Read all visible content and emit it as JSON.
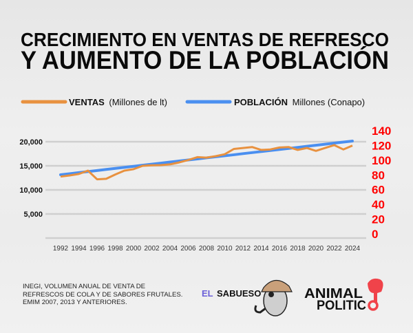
{
  "title": {
    "line1": "CRECIMIENTO EN VENTAS DE REFRESCO",
    "line2": "Y AUMENTO DE LA POBLACIÓN"
  },
  "legend": {
    "ventas_bold": "VENTAS",
    "ventas_rest": "(Millones de lt)",
    "poblacion_bold": "POBLACIÓN",
    "poblacion_rest": "Millones (Conapo)"
  },
  "source": "INEGI, VOLUMEN ANUAL DE VENTA DE REFRESCOS DE COLA Y DE SABORES FRUTALES. EMIM 2007, 2013 Y ANTERIORES.",
  "logos": {
    "sabueso_el": "EL",
    "sabueso": "SABUESO",
    "animal": "ANIMAL",
    "politico": "POLITIC"
  },
  "colors": {
    "ventas": "#e8913f",
    "poblacion": "#4a8ff0",
    "right_axis": "#ff0000",
    "grid": "#cfcfcf"
  },
  "chart_data": {
    "type": "line",
    "grid": true,
    "legend_placement": "top",
    "x": [
      1992,
      1993,
      1994,
      1995,
      1996,
      1997,
      1998,
      1999,
      2000,
      2001,
      2002,
      2003,
      2004,
      2005,
      2006,
      2007,
      2008,
      2009,
      2010,
      2011,
      2012,
      2013,
      2014,
      2015,
      2016,
      2017,
      2018,
      2019,
      2020,
      2021,
      2022,
      2023,
      2024
    ],
    "x_tick_labels": [
      "1992",
      "1994",
      "1996",
      "1998",
      "2000",
      "2002",
      "2004",
      "2006",
      "2008",
      "2010",
      "2012",
      "2014",
      "2016",
      "2018",
      "2020",
      "2022",
      "2024"
    ],
    "left_axis": {
      "ylim": [
        0,
        20000
      ],
      "tick_labels": [
        "20,000",
        "15,000",
        "10,000",
        "5,000"
      ]
    },
    "right_axis": {
      "ylim": [
        0,
        140
      ],
      "tick_labels": [
        "140",
        "120",
        "100",
        "80",
        "60",
        "40",
        "20",
        "0"
      ]
    },
    "series": [
      {
        "name": "VENTAS (Millones de lt)",
        "axis": "left",
        "values": [
          12760,
          13000,
          13300,
          14000,
          12200,
          12300,
          13200,
          14000,
          14300,
          15000,
          15100,
          15150,
          15300,
          15700,
          16200,
          16800,
          16700,
          17000,
          17400,
          18500,
          18700,
          18900,
          18300,
          18400,
          18800,
          18900,
          18300,
          18700,
          18100,
          18700,
          19300,
          18400,
          19200
        ]
      },
      {
        "name": "POBLACIÓN Millones (Conapo)",
        "axis": "right",
        "values": [
          80.3,
          81.7,
          83.2,
          84.6,
          86.0,
          87.5,
          88.9,
          90.3,
          91.7,
          93.2,
          94.6,
          96.0,
          97.5,
          98.9,
          100.3,
          101.7,
          103.2,
          104.6,
          106.0,
          107.4,
          108.9,
          110.3,
          111.7,
          113.2,
          114.6,
          116.0,
          117.4,
          118.9,
          120.3,
          121.7,
          123.2,
          124.6,
          126.0
        ]
      }
    ]
  }
}
